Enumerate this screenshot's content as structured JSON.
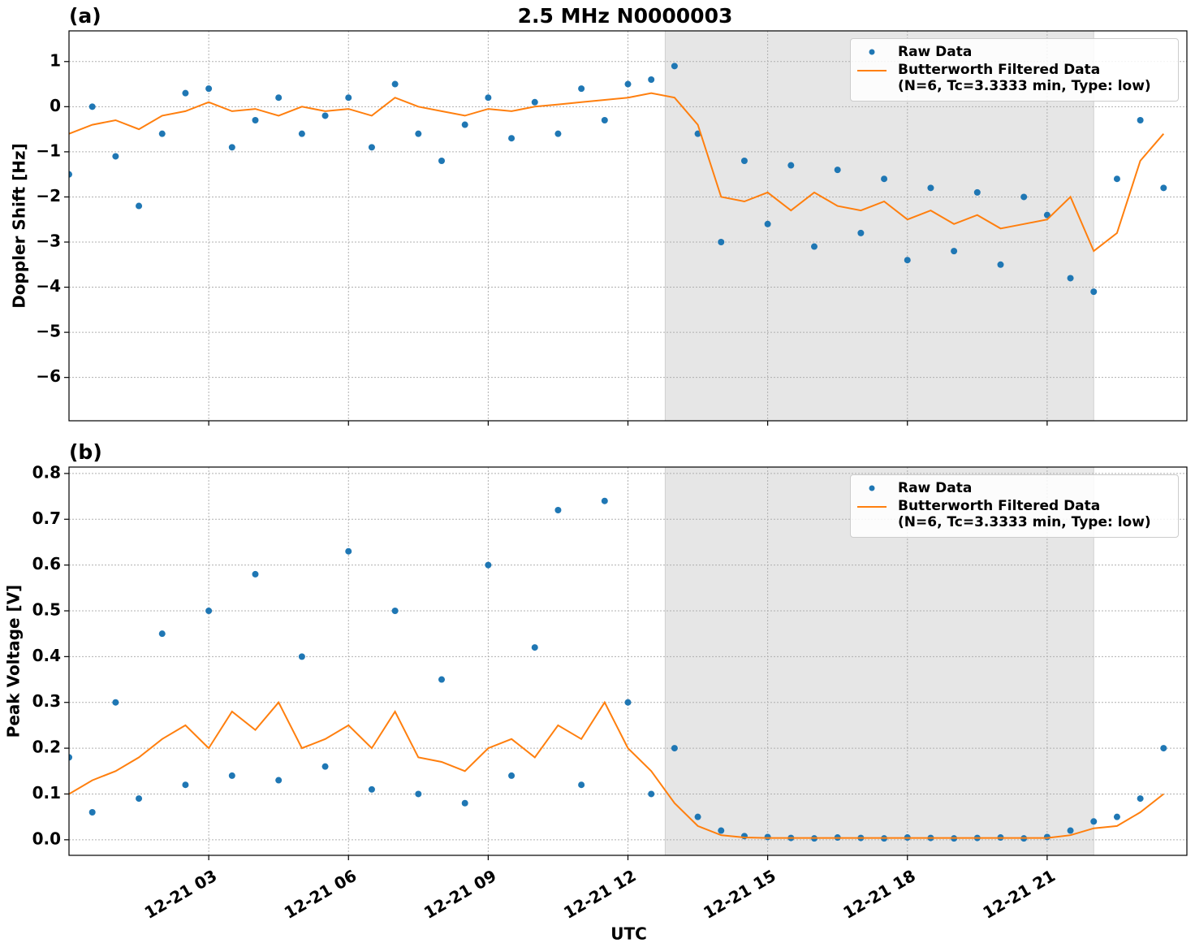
{
  "title": "2.5 MHz N0000003",
  "chart_data": [
    {
      "type": "scatter",
      "panel_label": "(a)",
      "ylabel": "Doppler Shift [Hz]",
      "xlim": [
        0,
        24
      ],
      "ylim": [
        -6.96,
        1.68
      ],
      "yticks": [
        {
          "value": -6,
          "label": "−6"
        },
        {
          "value": -5,
          "label": "−5"
        },
        {
          "value": -4,
          "label": "−4"
        },
        {
          "value": -3,
          "label": "−3"
        },
        {
          "value": -2,
          "label": "−2"
        },
        {
          "value": -1,
          "label": "−1"
        },
        0,
        1
      ],
      "grid": true,
      "shaded_span": [
        12.8,
        22.0
      ],
      "legend": "upper right",
      "x": [
        0,
        0.5,
        1,
        1.5,
        2,
        2.5,
        3,
        3.5,
        4,
        4.5,
        5,
        5.5,
        6,
        6.5,
        7,
        7.5,
        8,
        8.5,
        9,
        9.5,
        10,
        10.5,
        11,
        11.5,
        12,
        12.5,
        13,
        13.5,
        14,
        14.5,
        15,
        15.5,
        16,
        16.5,
        17,
        17.5,
        18,
        18.5,
        19,
        19.5,
        20,
        20.5,
        21,
        21.5,
        22,
        22.5,
        23,
        23.5
      ],
      "series": [
        {
          "name": "Raw Data",
          "color": "#1f77b4",
          "style": "points",
          "values": [
            -1.5,
            0.0,
            -1.1,
            -2.2,
            -0.6,
            0.3,
            0.4,
            -0.9,
            -0.3,
            0.2,
            -0.6,
            -0.2,
            0.2,
            -0.9,
            0.5,
            -0.6,
            -1.2,
            -0.4,
            0.2,
            -0.7,
            0.1,
            -0.6,
            0.4,
            -0.3,
            0.5,
            0.6,
            0.9,
            -0.6,
            -3.0,
            -1.2,
            -2.6,
            -1.3,
            -3.1,
            -1.4,
            -2.8,
            -1.6,
            -3.4,
            -1.8,
            -3.2,
            -1.9,
            -3.5,
            -2.0,
            -2.4,
            -3.8,
            -4.1,
            -1.6,
            -0.3,
            -1.8
          ]
        },
        {
          "name": "Butterworth Filtered Data\n(N=6, Tc=3.3333 min, Type: low)",
          "color": "#ff7f0e",
          "style": "line",
          "values": [
            -0.6,
            -0.4,
            -0.3,
            -0.5,
            -0.2,
            -0.1,
            0.1,
            -0.1,
            -0.05,
            -0.2,
            0,
            -0.1,
            -0.05,
            -0.2,
            0.2,
            0,
            -0.1,
            -0.2,
            -0.05,
            -0.1,
            0,
            0.05,
            0.1,
            0.15,
            0.2,
            0.3,
            0.2,
            -0.4,
            -2.0,
            -2.1,
            -1.9,
            -2.3,
            -1.9,
            -2.2,
            -2.3,
            -2.1,
            -2.5,
            -2.3,
            -2.6,
            -2.4,
            -2.7,
            -2.6,
            -2.5,
            -2.0,
            -3.2,
            -2.8,
            -1.2,
            -0.6
          ]
        }
      ]
    },
    {
      "type": "scatter",
      "panel_label": "(b)",
      "ylabel": "Peak Voltage [V]",
      "xlabel": "UTC",
      "xlim": [
        0,
        24
      ],
      "ylim": [
        -0.034,
        0.814
      ],
      "xticks": [
        {
          "value": 3,
          "label": "12-21 03"
        },
        {
          "value": 6,
          "label": "12-21 06"
        },
        {
          "value": 9,
          "label": "12-21 09"
        },
        {
          "value": 12,
          "label": "12-21 12"
        },
        {
          "value": 15,
          "label": "12-21 15"
        },
        {
          "value": 18,
          "label": "12-21 18"
        },
        {
          "value": 21,
          "label": "12-21 21"
        }
      ],
      "yticks": [
        {
          "value": 0,
          "label": "0.0"
        },
        0.1,
        0.2,
        0.3,
        0.4,
        0.5,
        0.6,
        0.7,
        0.8
      ],
      "grid": true,
      "shaded_span": [
        12.8,
        22.0
      ],
      "legend": "upper right",
      "x": [
        0,
        0.5,
        1,
        1.5,
        2,
        2.5,
        3,
        3.5,
        4,
        4.5,
        5,
        5.5,
        6,
        6.5,
        7,
        7.5,
        8,
        8.5,
        9,
        9.5,
        10,
        10.5,
        11,
        11.5,
        12,
        12.5,
        13,
        13.5,
        14,
        14.5,
        15,
        15.5,
        16,
        16.5,
        17,
        17.5,
        18,
        18.5,
        19,
        19.5,
        20,
        20.5,
        21,
        21.5,
        22,
        22.5,
        23,
        23.5
      ],
      "series": [
        {
          "name": "Raw Data",
          "color": "#1f77b4",
          "style": "points",
          "values": [
            0.18,
            0.06,
            0.3,
            0.09,
            0.45,
            0.12,
            0.5,
            0.14,
            0.58,
            0.13,
            0.4,
            0.16,
            0.63,
            0.11,
            0.5,
            0.1,
            0.35,
            0.08,
            0.6,
            0.14,
            0.42,
            0.72,
            0.12,
            0.74,
            0.3,
            0.1,
            0.2,
            0.05,
            0.02,
            0.008,
            0.006,
            0.004,
            0.003,
            0.005,
            0.004,
            0.003,
            0.005,
            0.004,
            0.003,
            0.004,
            0.005,
            0.003,
            0.006,
            0.02,
            0.04,
            0.05,
            0.09,
            0.2
          ]
        },
        {
          "name": "Butterworth Filtered Data\n(N=6, Tc=3.3333 min, Type: low)",
          "color": "#ff7f0e",
          "style": "line",
          "values": [
            0.1,
            0.13,
            0.15,
            0.18,
            0.22,
            0.25,
            0.2,
            0.28,
            0.24,
            0.3,
            0.2,
            0.22,
            0.25,
            0.2,
            0.28,
            0.18,
            0.17,
            0.15,
            0.2,
            0.22,
            0.18,
            0.25,
            0.22,
            0.3,
            0.2,
            0.15,
            0.08,
            0.03,
            0.01,
            0.005,
            0.004,
            0.004,
            0.004,
            0.004,
            0.004,
            0.004,
            0.004,
            0.004,
            0.004,
            0.004,
            0.004,
            0.004,
            0.004,
            0.01,
            0.025,
            0.03,
            0.06,
            0.1
          ]
        }
      ]
    }
  ]
}
